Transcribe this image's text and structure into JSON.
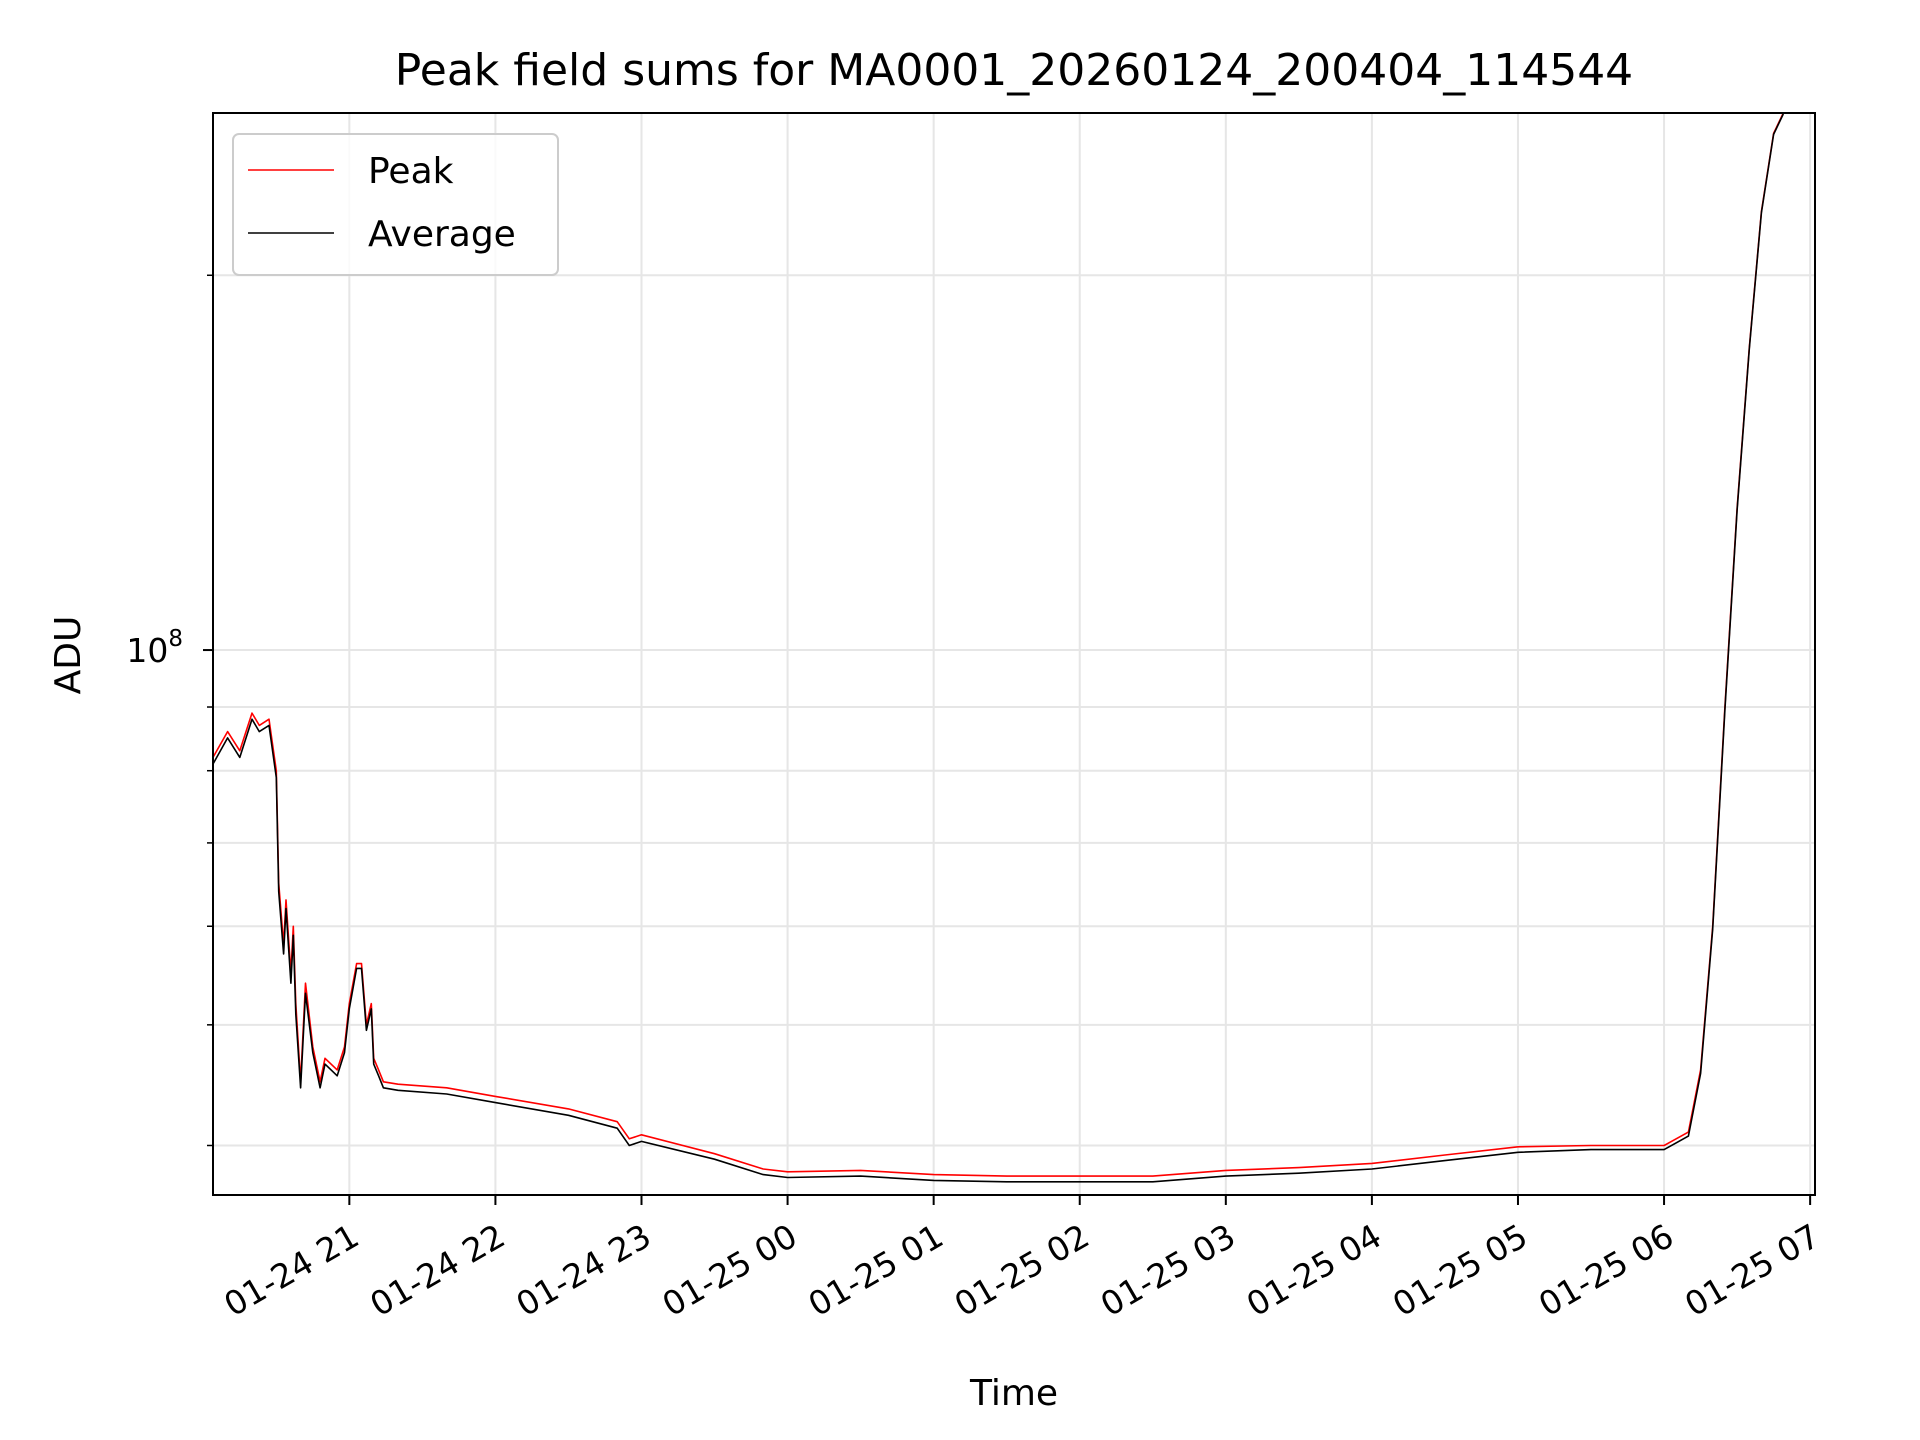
{
  "chart_data": {
    "type": "line",
    "title": "Peak field sums for MA0001_20260124_200404_114544",
    "xlabel": "Time",
    "ylabel": "ADU",
    "y_scale": "log",
    "grid": true,
    "legend_position": "top-left",
    "x_tick_labels": [
      "01-24 21",
      "01-24 22",
      "01-24 23",
      "01-25 00",
      "01-25 01",
      "01-25 02",
      "01-25 03",
      "01-25 04",
      "01-25 05",
      "01-25 06",
      "01-25 07"
    ],
    "x_ticks": [
      "2026-01-24 21:00",
      "2026-01-24 22:00",
      "2026-01-24 23:00",
      "2026-01-25 00:00",
      "2026-01-25 01:00",
      "2026-01-25 02:00",
      "2026-01-25 03:00",
      "2026-01-25 04:00",
      "2026-01-25 05:00",
      "2026-01-25 06:00",
      "2026-01-25 07:00"
    ],
    "xlim": [
      "2026-01-24 20:04",
      "2026-01-25 07:02"
    ],
    "y_major_tick": {
      "value": 100000000,
      "base": "10",
      "exponent": "8"
    },
    "y_minor_ticks": [
      40000000,
      50000000,
      60000000,
      70000000,
      80000000,
      90000000,
      200000000
    ],
    "ylim": [
      36500000,
      270000000
    ],
    "series": [
      {
        "name": "Peak",
        "color": "#ff0000",
        "x": [
          "2026-01-24 20:04",
          "2026-01-24 20:10",
          "2026-01-24 20:15",
          "2026-01-24 20:20",
          "2026-01-24 20:23",
          "2026-01-24 20:27",
          "2026-01-24 20:30",
          "2026-01-24 20:31",
          "2026-01-24 20:33",
          "2026-01-24 20:34",
          "2026-01-24 20:36",
          "2026-01-24 20:37",
          "2026-01-24 20:38",
          "2026-01-24 20:40",
          "2026-01-24 20:42",
          "2026-01-24 20:45",
          "2026-01-24 20:48",
          "2026-01-24 20:50",
          "2026-01-24 20:55",
          "2026-01-24 20:58",
          "2026-01-24 21:00",
          "2026-01-24 21:03",
          "2026-01-24 21:05",
          "2026-01-24 21:07",
          "2026-01-24 21:09",
          "2026-01-24 21:10",
          "2026-01-24 21:12",
          "2026-01-24 21:14",
          "2026-01-24 21:20",
          "2026-01-24 21:40",
          "2026-01-24 22:00",
          "2026-01-24 22:30",
          "2026-01-24 22:50",
          "2026-01-24 22:55",
          "2026-01-24 23:00",
          "2026-01-24 23:30",
          "2026-01-24 23:50",
          "2026-01-25 00:00",
          "2026-01-25 00:30",
          "2026-01-25 01:00",
          "2026-01-25 01:30",
          "2026-01-25 02:00",
          "2026-01-25 02:30",
          "2026-01-25 03:00",
          "2026-01-25 03:30",
          "2026-01-25 04:00",
          "2026-01-25 04:30",
          "2026-01-25 05:00",
          "2026-01-25 05:30",
          "2026-01-25 06:00",
          "2026-01-25 06:10",
          "2026-01-25 06:15",
          "2026-01-25 06:20",
          "2026-01-25 06:25",
          "2026-01-25 06:30",
          "2026-01-25 06:35",
          "2026-01-25 06:40",
          "2026-01-25 06:45",
          "2026-01-25 06:49"
        ],
        "values": [
          82000000,
          86000000,
          83000000,
          89000000,
          87000000,
          88000000,
          80000000,
          65000000,
          58000000,
          63000000,
          55000000,
          60000000,
          52000000,
          45000000,
          54000000,
          48000000,
          45000000,
          47000000,
          46000000,
          48000000,
          52000000,
          56000000,
          56000000,
          50000000,
          52000000,
          47000000,
          46000000,
          45000000,
          44800000,
          44500000,
          43800000,
          42800000,
          41800000,
          40500000,
          40800000,
          39400000,
          38300000,
          38100000,
          38200000,
          37900000,
          37800000,
          37800000,
          37800000,
          38200000,
          38400000,
          38700000,
          39300000,
          39900000,
          40000000,
          40000000,
          41000000,
          46000000,
          60000000,
          90000000,
          130000000,
          175000000,
          225000000,
          260000000,
          270000000
        ]
      },
      {
        "name": "Average",
        "color": "#000000",
        "x": [
          "2026-01-24 20:04",
          "2026-01-24 20:10",
          "2026-01-24 20:15",
          "2026-01-24 20:20",
          "2026-01-24 20:23",
          "2026-01-24 20:27",
          "2026-01-24 20:30",
          "2026-01-24 20:31",
          "2026-01-24 20:33",
          "2026-01-24 20:34",
          "2026-01-24 20:36",
          "2026-01-24 20:37",
          "2026-01-24 20:38",
          "2026-01-24 20:40",
          "2026-01-24 20:42",
          "2026-01-24 20:45",
          "2026-01-24 20:48",
          "2026-01-24 20:50",
          "2026-01-24 20:55",
          "2026-01-24 20:58",
          "2026-01-24 21:00",
          "2026-01-24 21:03",
          "2026-01-24 21:05",
          "2026-01-24 21:07",
          "2026-01-24 21:09",
          "2026-01-24 21:10",
          "2026-01-24 21:12",
          "2026-01-24 21:14",
          "2026-01-24 21:20",
          "2026-01-24 21:40",
          "2026-01-24 22:00",
          "2026-01-24 22:30",
          "2026-01-24 22:50",
          "2026-01-24 22:55",
          "2026-01-24 23:00",
          "2026-01-24 23:30",
          "2026-01-24 23:50",
          "2026-01-25 00:00",
          "2026-01-25 00:30",
          "2026-01-25 01:00",
          "2026-01-25 01:30",
          "2026-01-25 02:00",
          "2026-01-25 02:30",
          "2026-01-25 03:00",
          "2026-01-25 03:30",
          "2026-01-25 04:00",
          "2026-01-25 04:30",
          "2026-01-25 05:00",
          "2026-01-25 05:30",
          "2026-01-25 06:00",
          "2026-01-25 06:10",
          "2026-01-25 06:15",
          "2026-01-25 06:20",
          "2026-01-25 06:25",
          "2026-01-25 06:30",
          "2026-01-25 06:35",
          "2026-01-25 06:40",
          "2026-01-25 06:45",
          "2026-01-25 06:49"
        ],
        "values": [
          81000000,
          85000000,
          82000000,
          88000000,
          86000000,
          87000000,
          79000000,
          64000000,
          57000000,
          62000000,
          54000000,
          59000000,
          51000000,
          44500000,
          53000000,
          47500000,
          44500000,
          46500000,
          45500000,
          47500000,
          51500000,
          55500000,
          55500000,
          49500000,
          51500000,
          46500000,
          45500000,
          44500000,
          44300000,
          44000000,
          43300000,
          42300000,
          41300000,
          40000000,
          40300000,
          39000000,
          37900000,
          37700000,
          37800000,
          37500000,
          37400000,
          37400000,
          37400000,
          37800000,
          38000000,
          38300000,
          38900000,
          39500000,
          39700000,
          39700000,
          40700000,
          45700000,
          59700000,
          89500000,
          129500000,
          174500000,
          224500000,
          259500000,
          269500000
        ]
      }
    ]
  }
}
